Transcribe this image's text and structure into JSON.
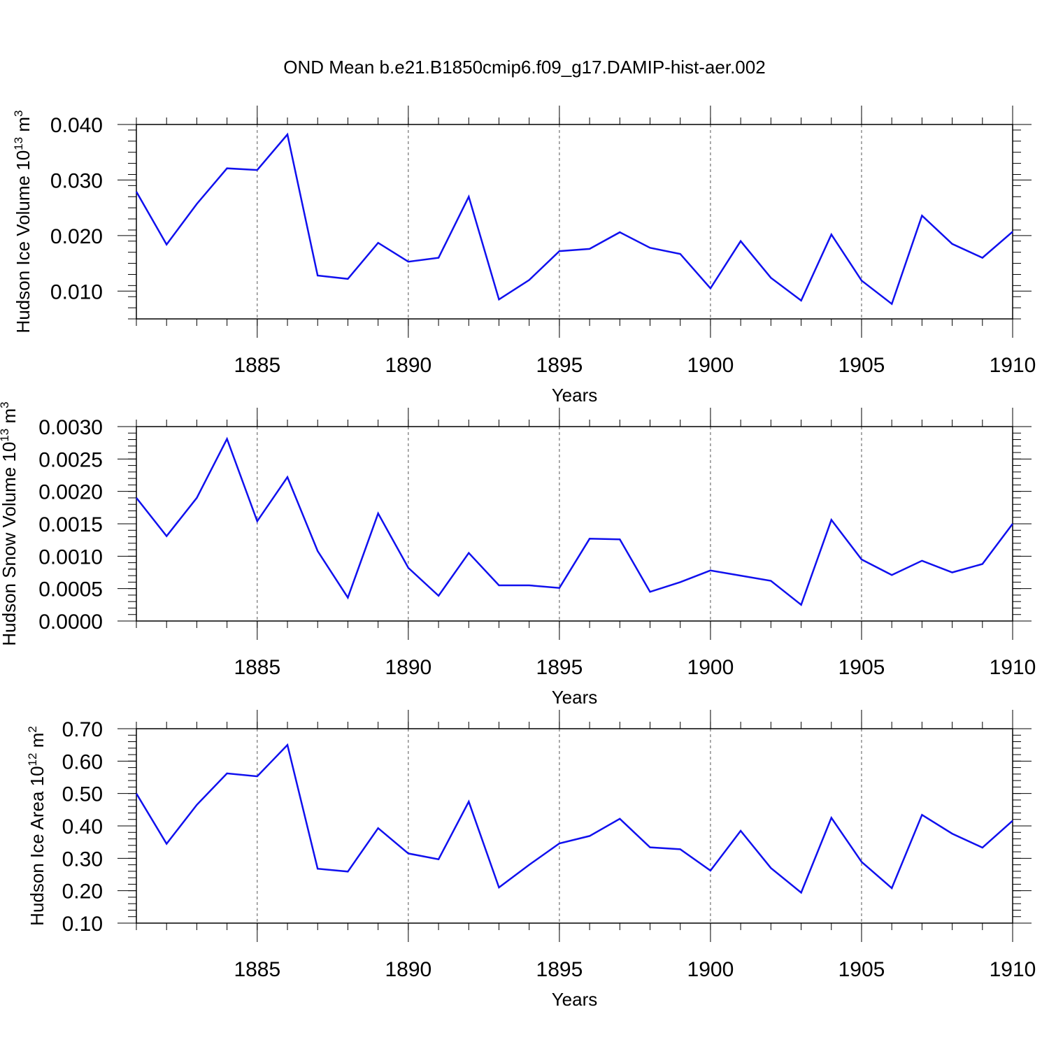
{
  "title": "OND Mean b.e21.B1850cmip6.f09_g17.DAMIP-hist-aer.002",
  "line_color": "#1010ee",
  "chart_data": [
    {
      "type": "line",
      "ylabel_main": "Hudson Ice Volume 10",
      "ylabel_exp": "13",
      "ylabel_unit": "m",
      "ylabel_unit_exp": "3",
      "xlabel": "Years",
      "xlim": [
        1881,
        1910
      ],
      "ylim": [
        0.005,
        0.04
      ],
      "yticks": [
        0.01,
        0.02,
        0.03,
        0.04
      ],
      "ytick_labels": [
        "0.010",
        "0.020",
        "0.030",
        "0.040"
      ],
      "xticks": [
        1885,
        1890,
        1895,
        1900,
        1905,
        1910
      ],
      "xtick_labels": [
        "1885",
        "1890",
        "1895",
        "1900",
        "1905",
        "1910"
      ],
      "x": [
        1881,
        1882,
        1883,
        1884,
        1885,
        1886,
        1887,
        1888,
        1889,
        1890,
        1891,
        1892,
        1893,
        1894,
        1895,
        1896,
        1897,
        1898,
        1899,
        1900,
        1901,
        1902,
        1903,
        1904,
        1905,
        1906,
        1907,
        1908,
        1909,
        1910
      ],
      "y": [
        0.0279,
        0.0184,
        0.0257,
        0.0321,
        0.0318,
        0.0382,
        0.0128,
        0.0122,
        0.0187,
        0.0153,
        0.016,
        0.027,
        0.0085,
        0.012,
        0.0172,
        0.0176,
        0.0206,
        0.0178,
        0.0167,
        0.0105,
        0.019,
        0.0124,
        0.0083,
        0.0202,
        0.0119,
        0.0077,
        0.0236,
        0.0185,
        0.016,
        0.0207
      ]
    },
    {
      "type": "line",
      "ylabel_main": "Hudson Snow Volume 10",
      "ylabel_exp": "13",
      "ylabel_unit": "m",
      "ylabel_unit_exp": "3",
      "xlabel": "Years",
      "xlim": [
        1881,
        1910
      ],
      "ylim": [
        0.0,
        0.003
      ],
      "yticks": [
        0.0,
        0.0005,
        0.001,
        0.0015,
        0.002,
        0.0025,
        0.003
      ],
      "ytick_labels": [
        "0.0000",
        "0.0005",
        "0.0010",
        "0.0015",
        "0.0020",
        "0.0025",
        "0.0030"
      ],
      "xticks": [
        1885,
        1890,
        1895,
        1900,
        1905,
        1910
      ],
      "xtick_labels": [
        "1885",
        "1890",
        "1895",
        "1900",
        "1905",
        "1910"
      ],
      "x": [
        1881,
        1882,
        1883,
        1884,
        1885,
        1886,
        1887,
        1888,
        1889,
        1890,
        1891,
        1892,
        1893,
        1894,
        1895,
        1896,
        1897,
        1898,
        1899,
        1900,
        1901,
        1902,
        1903,
        1904,
        1905,
        1906,
        1907,
        1908,
        1909,
        1910
      ],
      "y": [
        0.0019,
        0.00131,
        0.0019,
        0.00281,
        0.00154,
        0.00222,
        0.00108,
        0.00036,
        0.00166,
        0.00082,
        0.00039,
        0.00105,
        0.00055,
        0.00055,
        0.00051,
        0.00127,
        0.00126,
        0.00045,
        0.0006,
        0.00078,
        0.0007,
        0.00062,
        0.00025,
        0.00156,
        0.00095,
        0.00071,
        0.00093,
        0.00075,
        0.00088,
        0.0015
      ]
    },
    {
      "type": "line",
      "ylabel_main": "Hudson Ice Area 10",
      "ylabel_exp": "12",
      "ylabel_unit": "m",
      "ylabel_unit_exp": "2",
      "xlabel": "Years",
      "xlim": [
        1881,
        1910
      ],
      "ylim": [
        0.1,
        0.7
      ],
      "yticks": [
        0.1,
        0.2,
        0.3,
        0.4,
        0.5,
        0.6,
        0.7
      ],
      "ytick_labels": [
        "0.10",
        "0.20",
        "0.30",
        "0.40",
        "0.50",
        "0.60",
        "0.70"
      ],
      "xticks": [
        1885,
        1890,
        1895,
        1900,
        1905,
        1910
      ],
      "xtick_labels": [
        "1885",
        "1890",
        "1895",
        "1900",
        "1905",
        "1910"
      ],
      "x": [
        1881,
        1882,
        1883,
        1884,
        1885,
        1886,
        1887,
        1888,
        1889,
        1890,
        1891,
        1892,
        1893,
        1894,
        1895,
        1896,
        1897,
        1898,
        1899,
        1900,
        1901,
        1902,
        1903,
        1904,
        1905,
        1906,
        1907,
        1908,
        1909,
        1910
      ],
      "y": [
        0.5,
        0.345,
        0.465,
        0.562,
        0.553,
        0.65,
        0.268,
        0.259,
        0.393,
        0.315,
        0.297,
        0.475,
        0.21,
        0.28,
        0.346,
        0.369,
        0.422,
        0.334,
        0.328,
        0.262,
        0.385,
        0.27,
        0.194,
        0.425,
        0.289,
        0.208,
        0.434,
        0.376,
        0.333,
        0.416
      ]
    }
  ]
}
